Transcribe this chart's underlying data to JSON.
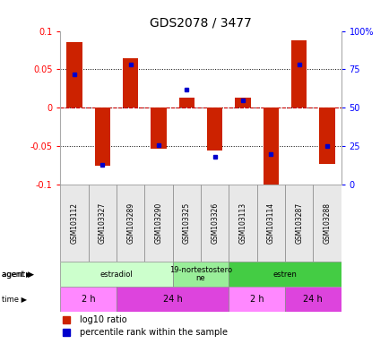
{
  "title": "GDS2078 / 3477",
  "samples": [
    "GSM103112",
    "GSM103327",
    "GSM103289",
    "GSM103290",
    "GSM103325",
    "GSM103326",
    "GSM103113",
    "GSM103114",
    "GSM103287",
    "GSM103288"
  ],
  "log10_ratio": [
    0.085,
    -0.075,
    0.065,
    -0.053,
    0.013,
    -0.055,
    0.013,
    -0.105,
    0.088,
    -0.073
  ],
  "percentile": [
    72,
    13,
    78,
    26,
    62,
    18,
    55,
    20,
    78,
    25
  ],
  "ylim": [
    -0.1,
    0.1
  ],
  "y_ticks_left": [
    -0.1,
    -0.05,
    0,
    0.05,
    0.1
  ],
  "y_ticks_right": [
    0,
    25,
    50,
    75,
    100
  ],
  "bar_color": "#cc2200",
  "dot_color": "#0000cc",
  "zero_line_color": "#cc0000",
  "agent_groups": [
    {
      "label": "estradiol",
      "start": 0,
      "end": 4,
      "color": "#ccffcc"
    },
    {
      "label": "19-nortestostero\nne",
      "start": 4,
      "end": 6,
      "color": "#99ee99"
    },
    {
      "label": "estren",
      "start": 6,
      "end": 10,
      "color": "#44cc44"
    }
  ],
  "time_groups": [
    {
      "label": "2 h",
      "start": 0,
      "end": 2,
      "color": "#ff88ff"
    },
    {
      "label": "24 h",
      "start": 2,
      "end": 6,
      "color": "#dd44dd"
    },
    {
      "label": "2 h",
      "start": 6,
      "end": 8,
      "color": "#ff88ff"
    },
    {
      "label": "24 h",
      "start": 8,
      "end": 10,
      "color": "#dd44dd"
    }
  ],
  "background_color": "#ffffff"
}
